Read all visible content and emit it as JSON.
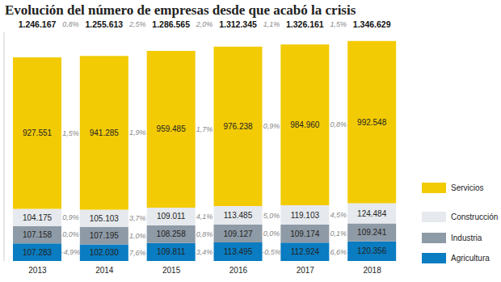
{
  "chart_data": {
    "type": "bar",
    "title": "Evolución del número de empresas desde que acabó la crisis",
    "categories": [
      "2013",
      "2014",
      "2015",
      "2016",
      "2017",
      "2018"
    ],
    "stacked": true,
    "data_labels": true,
    "tick_labels": "x",
    "legend": "lower right",
    "ylim": [
      0,
      1400000
    ],
    "series": [
      {
        "name": "Agricultura",
        "color": "#0a7cc1",
        "values": [
          107283,
          102030,
          109811,
          113495,
          112924,
          120356
        ],
        "value_labels": [
          "107.283",
          "102.030",
          "109.811",
          "113.495",
          "112.924",
          "120.356"
        ],
        "changes": [
          -4.9,
          7.6,
          3.4,
          -0.5,
          6.6
        ],
        "change_labels": [
          "-4,9%",
          "7,6%",
          "3,4%",
          "-0,5%",
          "6,6%"
        ]
      },
      {
        "name": "Industria",
        "color": "#8e9aa6",
        "values": [
          107158,
          107195,
          108258,
          109127,
          109174,
          109241
        ],
        "value_labels": [
          "107.158",
          "107.195",
          "108.258",
          "109.127",
          "109.174",
          "109.241"
        ],
        "changes": [
          0.0,
          1.0,
          0.8,
          0.0,
          0.1
        ],
        "change_labels": [
          "0,0%",
          "1,0%",
          "0,8%",
          "0,0%",
          "0,1%"
        ]
      },
      {
        "name": "Construcción",
        "color": "#e6e9ed",
        "values": [
          104175,
          105103,
          109011,
          113485,
          119103,
          124484
        ],
        "value_labels": [
          "104.175",
          "105.103",
          "109.011",
          "113.485",
          "119.103",
          "124.484"
        ],
        "changes": [
          0.9,
          3.7,
          4.1,
          5.0,
          4.5
        ],
        "change_labels": [
          "0,9%",
          "3,7%",
          "4,1%",
          "5,0%",
          "4,5%"
        ]
      },
      {
        "name": "Servicios",
        "color": "#f2cb05",
        "values": [
          927551,
          941285,
          959485,
          976238,
          984960,
          992548
        ],
        "value_labels": [
          "927.551",
          "941.285",
          "959.485",
          "976.238",
          "984.960",
          "992.548"
        ],
        "changes": [
          1.5,
          1.9,
          1.7,
          0.9,
          0.8
        ],
        "change_labels": [
          "1,5%",
          "1,9%",
          "1,7%",
          "0,9%",
          "0,8%"
        ]
      }
    ],
    "totals": [
      1246167,
      1255613,
      1286565,
      1312345,
      1326161,
      1346629
    ],
    "total_labels": [
      "1.246.167",
      "1.255.613",
      "1.286.565",
      "1.312.345",
      "1.326.161",
      "1.346.629"
    ],
    "total_changes": [
      0.8,
      2.5,
      2.0,
      1.1,
      1.5
    ],
    "total_change_labels": [
      "0,8%",
      "2,5%",
      "2,0%",
      "1,1%",
      "1,5%"
    ]
  }
}
